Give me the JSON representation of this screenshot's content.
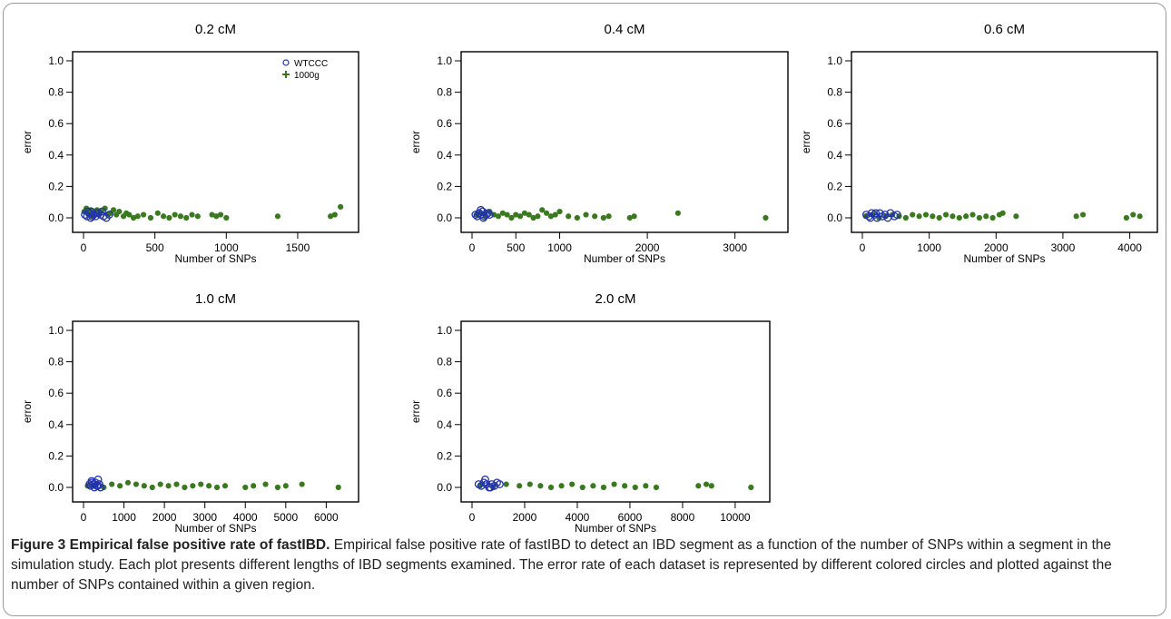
{
  "colors": {
    "wtccc": "#2233aa",
    "g1000": "#3a7a1f"
  },
  "caption": {
    "label": "Figure 3 Empirical false positive rate of fastIBD.",
    "text": "Empirical false positive rate of fastIBD to detect an IBD segment as a function of the number of SNPs within a segment in the simulation study. Each plot presents different lengths of IBD segments examined. The error rate of each dataset is represented by different colored circles and plotted against the number of SNPs contained within a given region."
  },
  "chart_data": [
    {
      "type": "scatter",
      "title": "0.2 cM",
      "xlabel": "Number of SNPs",
      "ylabel": "error",
      "xticks": [
        0,
        500,
        1000,
        1500
      ],
      "yticks": [
        0.0,
        0.2,
        0.4,
        0.6,
        0.8,
        1.0
      ],
      "ylim": [
        0,
        1.0
      ],
      "legend": {
        "position": "top-right",
        "entries": [
          "WTCCC",
          "1000g"
        ]
      },
      "series": [
        {
          "name": "WTCCC",
          "marker": "open-circle",
          "x": [
            10,
            25,
            40,
            55,
            70,
            85,
            100,
            120,
            140,
            160,
            180,
            30,
            60,
            90,
            130,
            50
          ],
          "y": [
            0.02,
            0.01,
            0.03,
            0.04,
            0.02,
            0.01,
            0.03,
            0.02,
            0.01,
            0.0,
            0.02,
            0.04,
            0.01,
            0.03,
            0.04,
            0.0
          ]
        },
        {
          "name": "1000g",
          "marker": "filled-point",
          "x": [
            5,
            20,
            35,
            50,
            65,
            80,
            95,
            110,
            125,
            150,
            170,
            190,
            210,
            230,
            250,
            280,
            300,
            320,
            350,
            380,
            420,
            470,
            520,
            560,
            600,
            640,
            680,
            720,
            760,
            800,
            900,
            930,
            960,
            1000,
            1360,
            1730,
            1760,
            1800
          ],
          "y": [
            0.04,
            0.06,
            0.02,
            0.05,
            0.01,
            0.03,
            0.05,
            0.02,
            0.04,
            0.06,
            0.02,
            0.03,
            0.05,
            0.02,
            0.04,
            0.01,
            0.03,
            0.02,
            0.0,
            0.01,
            0.02,
            0.0,
            0.03,
            0.01,
            0.0,
            0.02,
            0.01,
            0.0,
            0.02,
            0.01,
            0.02,
            0.01,
            0.02,
            0.0,
            0.01,
            0.01,
            0.02,
            0.07
          ]
        }
      ]
    },
    {
      "type": "scatter",
      "title": "0.4 cM",
      "xlabel": "Number of SNPs",
      "ylabel": "error",
      "xticks": [
        0,
        500,
        1000,
        2000,
        3000
      ],
      "yticks": [
        0.0,
        0.2,
        0.4,
        0.6,
        0.8,
        1.0
      ],
      "ylim": [
        0,
        1.0
      ],
      "series": [
        {
          "name": "WTCCC",
          "marker": "open-circle",
          "x": [
            40,
            60,
            80,
            100,
            120,
            140,
            160,
            180,
            200,
            100,
            130
          ],
          "y": [
            0.02,
            0.01,
            0.03,
            0.02,
            0.04,
            0.01,
            0.02,
            0.03,
            0.02,
            0.05,
            0.0
          ]
        },
        {
          "name": "1000g",
          "marker": "filled-point",
          "x": [
            50,
            100,
            150,
            200,
            250,
            300,
            350,
            400,
            450,
            500,
            550,
            600,
            650,
            700,
            750,
            800,
            850,
            900,
            950,
            1000,
            1100,
            1200,
            1300,
            1400,
            1500,
            1560,
            1800,
            1850,
            2350,
            3350
          ],
          "y": [
            0.02,
            0.03,
            0.01,
            0.04,
            0.02,
            0.01,
            0.03,
            0.02,
            0.0,
            0.02,
            0.01,
            0.03,
            0.02,
            0.0,
            0.01,
            0.05,
            0.03,
            0.01,
            0.02,
            0.04,
            0.01,
            0.0,
            0.02,
            0.01,
            0.0,
            0.01,
            0.0,
            0.01,
            0.03,
            0.0
          ]
        }
      ]
    },
    {
      "type": "scatter",
      "title": "0.6 cM",
      "xlabel": "Number of SNPs",
      "ylabel": "error",
      "xticks": [
        0,
        1000,
        2000,
        3000,
        4000
      ],
      "yticks": [
        0.0,
        0.2,
        0.4,
        0.6,
        0.8,
        1.0
      ],
      "ylim": [
        0,
        1.0
      ],
      "series": [
        {
          "name": "WTCCC",
          "marker": "open-circle",
          "x": [
            60,
            100,
            140,
            180,
            220,
            260,
            300,
            340,
            380,
            420,
            480,
            520,
            120,
            200
          ],
          "y": [
            0.02,
            0.01,
            0.03,
            0.02,
            0.0,
            0.03,
            0.01,
            0.02,
            0.0,
            0.03,
            0.01,
            0.02,
            0.0,
            0.03
          ]
        },
        {
          "name": "1000g",
          "marker": "filled-point",
          "x": [
            50,
            150,
            250,
            350,
            450,
            550,
            650,
            750,
            850,
            950,
            1050,
            1150,
            1250,
            1350,
            1450,
            1550,
            1650,
            1750,
            1850,
            1950,
            2050,
            2100,
            2300,
            3200,
            3300,
            3950,
            4050,
            4150
          ],
          "y": [
            0.01,
            0.02,
            0.0,
            0.01,
            0.02,
            0.01,
            0.0,
            0.02,
            0.01,
            0.02,
            0.01,
            0.0,
            0.02,
            0.01,
            0.0,
            0.01,
            0.02,
            0.0,
            0.01,
            0.0,
            0.02,
            0.03,
            0.01,
            0.01,
            0.02,
            0.0,
            0.02,
            0.01
          ]
        }
      ]
    },
    {
      "type": "scatter",
      "title": "1.0 cM",
      "xlabel": "Number of SNPs",
      "ylabel": "error",
      "xticks": [
        0,
        1000,
        2000,
        3000,
        4000,
        5000,
        6000
      ],
      "yticks": [
        0.0,
        0.2,
        0.4,
        0.6,
        0.8,
        1.0
      ],
      "ylim": [
        0,
        1.0
      ],
      "series": [
        {
          "name": "WTCCC",
          "marker": "open-circle",
          "x": [
            150,
            180,
            210,
            240,
            270,
            300,
            330,
            360,
            390,
            420,
            200,
            280,
            350
          ],
          "y": [
            0.02,
            0.01,
            0.03,
            0.02,
            0.0,
            0.03,
            0.01,
            0.05,
            0.02,
            0.0,
            0.04,
            0.02,
            0.01
          ]
        },
        {
          "name": "1000g",
          "marker": "filled-point",
          "x": [
            100,
            300,
            500,
            700,
            900,
            1100,
            1300,
            1500,
            1700,
            1900,
            2100,
            2300,
            2500,
            2700,
            2900,
            3100,
            3300,
            3500,
            4000,
            4200,
            4500,
            4800,
            5000,
            5400,
            6300
          ],
          "y": [
            0.01,
            0.02,
            0.0,
            0.02,
            0.01,
            0.03,
            0.02,
            0.01,
            0.0,
            0.02,
            0.01,
            0.02,
            0.0,
            0.01,
            0.02,
            0.01,
            0.0,
            0.01,
            0.0,
            0.01,
            0.02,
            0.0,
            0.01,
            0.02,
            0.0
          ]
        }
      ]
    },
    {
      "type": "scatter",
      "title": "2.0 cM",
      "xlabel": "Number of SNPs",
      "ylabel": "error",
      "xticks": [
        0,
        2000,
        4000,
        6000,
        8000,
        10000
      ],
      "yticks": [
        0.0,
        0.2,
        0.4,
        0.6,
        0.8,
        1.0
      ],
      "ylim": [
        0,
        1.0
      ],
      "series": [
        {
          "name": "WTCCC",
          "marker": "open-circle",
          "x": [
            250,
            350,
            450,
            550,
            650,
            750,
            850,
            950,
            1050,
            500,
            700
          ],
          "y": [
            0.02,
            0.01,
            0.03,
            0.02,
            0.0,
            0.02,
            0.01,
            0.03,
            0.02,
            0.05,
            0.0
          ]
        },
        {
          "name": "1000g",
          "marker": "filled-point",
          "x": [
            300,
            800,
            1300,
            1800,
            2200,
            2600,
            3000,
            3400,
            3800,
            4200,
            4600,
            5000,
            5400,
            5800,
            6200,
            6600,
            7000,
            8600,
            8900,
            9100,
            10600
          ],
          "y": [
            0.01,
            0.0,
            0.02,
            0.01,
            0.02,
            0.01,
            0.0,
            0.01,
            0.02,
            0.0,
            0.01,
            0.0,
            0.02,
            0.01,
            0.0,
            0.01,
            0.0,
            0.01,
            0.02,
            0.01,
            0.0
          ]
        }
      ]
    }
  ]
}
